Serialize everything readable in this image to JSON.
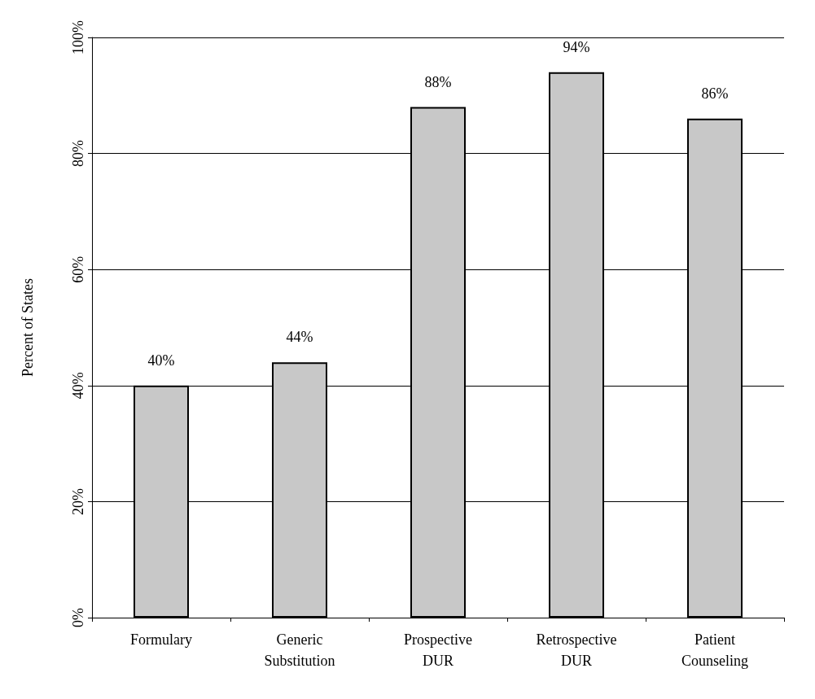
{
  "chart_data": {
    "type": "bar",
    "ylabel": "Percent of States",
    "categories": [
      "Formulary",
      "Generic\nSubstitution",
      "Prospective\nDUR",
      "Retrospective\nDUR",
      "Patient\nCounseling"
    ],
    "values": [
      40,
      44,
      88,
      94,
      86
    ],
    "value_labels": [
      "40%",
      "44%",
      "88%",
      "94%",
      "86%"
    ],
    "color": "#c8c8c8",
    "ylim": [
      0,
      100
    ],
    "yticks": [
      {
        "value": 0,
        "label": "0%"
      },
      {
        "value": 20,
        "label": "20%"
      },
      {
        "value": 40,
        "label": "40%"
      },
      {
        "value": 60,
        "label": "60%"
      },
      {
        "value": 80,
        "label": "80%"
      },
      {
        "value": 100,
        "label": "100%"
      }
    ],
    "grid": "y"
  }
}
